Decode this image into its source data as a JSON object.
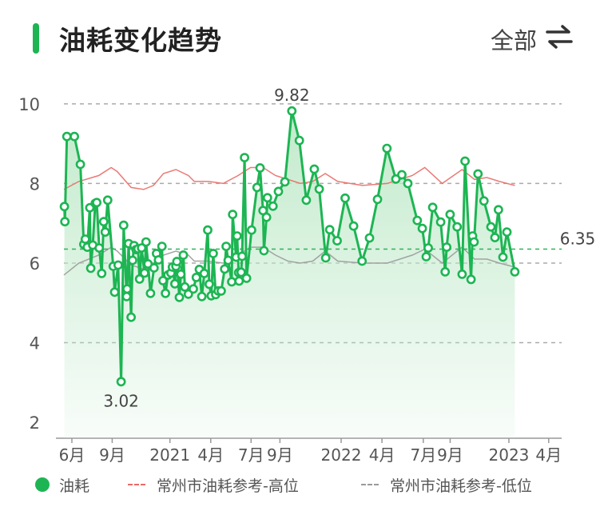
{
  "header": {
    "title": "油耗变化趋势",
    "filter_label": "全部",
    "filter_icon": "swap-arrows-icon"
  },
  "colors": {
    "accent": "#1db553",
    "fill": "#bfe9c9",
    "ref_high": "#e86b66",
    "ref_low": "#9a9a9a",
    "grid": "#aaaaaa",
    "avg_line": "#2fb25a"
  },
  "legend": {
    "series": "油耗",
    "ref_high": "常州市油耗参考-高位",
    "ref_low": "常州市油耗参考-低位"
  },
  "chart_data": {
    "type": "line",
    "y_ticks": [
      2,
      4,
      6,
      8,
      10
    ],
    "ylim": [
      1.6,
      10.6
    ],
    "x_ticks": [
      {
        "label": "6月",
        "pos": 0.016
      },
      {
        "label": "9月",
        "pos": 0.097
      },
      {
        "label": "2021",
        "pos": 0.213
      },
      {
        "label": "4月",
        "pos": 0.295
      },
      {
        "label": "7月",
        "pos": 0.376
      },
      {
        "label": "9月",
        "pos": 0.434
      },
      {
        "label": "2022",
        "pos": 0.557
      },
      {
        "label": "4月",
        "pos": 0.639
      },
      {
        "label": "7月",
        "pos": 0.722
      },
      {
        "label": "9月",
        "pos": 0.776
      },
      {
        "label": "2023",
        "pos": 0.894
      },
      {
        "label": "4月",
        "pos": 0.974
      }
    ],
    "average": 6.35,
    "annotations": {
      "max": "9.82",
      "min": "3.02",
      "avg": "6.35"
    },
    "series": [
      {
        "name": "油耗",
        "points": [
          [
            0.001,
            7.42
          ],
          [
            0.002,
            7.04
          ],
          [
            0.006,
            9.18
          ],
          [
            0.021,
            9.18
          ],
          [
            0.033,
            8.48
          ],
          [
            0.04,
            6.47
          ],
          [
            0.043,
            6.6
          ],
          [
            0.047,
            6.4
          ],
          [
            0.052,
            7.39
          ],
          [
            0.054,
            5.87
          ],
          [
            0.058,
            6.45
          ],
          [
            0.063,
            7.5
          ],
          [
            0.066,
            7.52
          ],
          [
            0.071,
            6.38
          ],
          [
            0.076,
            5.74
          ],
          [
            0.08,
            7.04
          ],
          [
            0.083,
            6.78
          ],
          [
            0.088,
            7.58
          ],
          [
            0.099,
            5.92
          ],
          [
            0.102,
            5.27
          ],
          [
            0.109,
            5.95
          ],
          [
            0.115,
            3.02
          ],
          [
            0.12,
            6.95
          ],
          [
            0.126,
            5.16
          ],
          [
            0.127,
            5.35
          ],
          [
            0.13,
            6.49
          ],
          [
            0.135,
            4.64
          ],
          [
            0.138,
            6.07
          ],
          [
            0.141,
            6.44
          ],
          [
            0.145,
            6.34
          ],
          [
            0.149,
            6.36
          ],
          [
            0.152,
            5.6
          ],
          [
            0.156,
            6.38
          ],
          [
            0.162,
            5.75
          ],
          [
            0.165,
            6.53
          ],
          [
            0.169,
            5.98
          ],
          [
            0.174,
            5.24
          ],
          [
            0.181,
            5.88
          ],
          [
            0.186,
            6.24
          ],
          [
            0.19,
            6.08
          ],
          [
            0.197,
            6.42
          ],
          [
            0.199,
            5.56
          ],
          [
            0.204,
            5.24
          ],
          [
            0.209,
            5.7
          ],
          [
            0.215,
            5.75
          ],
          [
            0.218,
            5.9
          ],
          [
            0.223,
            5.48
          ],
          [
            0.225,
            5.92
          ],
          [
            0.227,
            6.04
          ],
          [
            0.232,
            5.14
          ],
          [
            0.235,
            5.72
          ],
          [
            0.24,
            6.2
          ],
          [
            0.243,
            5.4
          ],
          [
            0.25,
            5.22
          ],
          [
            0.26,
            5.35
          ],
          [
            0.266,
            5.64
          ],
          [
            0.272,
            5.84
          ],
          [
            0.277,
            5.16
          ],
          [
            0.282,
            5.74
          ],
          [
            0.289,
            6.83
          ],
          [
            0.292,
            5.47
          ],
          [
            0.296,
            5.18
          ],
          [
            0.3,
            6.24
          ],
          [
            0.305,
            5.21
          ],
          [
            0.31,
            5.3
          ],
          [
            0.316,
            5.3
          ],
          [
            0.323,
            5.85
          ],
          [
            0.326,
            6.42
          ],
          [
            0.33,
            6.07
          ],
          [
            0.337,
            5.53
          ],
          [
            0.339,
            7.22
          ],
          [
            0.346,
            6.15
          ],
          [
            0.348,
            6.68
          ],
          [
            0.351,
            5.76
          ],
          [
            0.352,
            5.55
          ],
          [
            0.356,
            5.77
          ],
          [
            0.358,
            6.17
          ],
          [
            0.363,
            8.65
          ],
          [
            0.367,
            5.62
          ],
          [
            0.377,
            6.83
          ],
          [
            0.388,
            7.9
          ],
          [
            0.394,
            8.39
          ],
          [
            0.4,
            7.32
          ],
          [
            0.402,
            6.31
          ],
          [
            0.407,
            7.15
          ],
          [
            0.409,
            7.64
          ],
          [
            0.42,
            7.43
          ],
          [
            0.431,
            7.8
          ],
          [
            0.444,
            8.04
          ],
          [
            0.458,
            9.82
          ],
          [
            0.473,
            9.08
          ],
          [
            0.487,
            7.58
          ],
          [
            0.503,
            8.36
          ],
          [
            0.513,
            7.86
          ],
          [
            0.526,
            6.13
          ],
          [
            0.534,
            6.84
          ],
          [
            0.549,
            6.56
          ],
          [
            0.565,
            7.63
          ],
          [
            0.582,
            6.93
          ],
          [
            0.599,
            6.05
          ],
          [
            0.614,
            6.63
          ],
          [
            0.63,
            7.6
          ],
          [
            0.649,
            8.88
          ],
          [
            0.667,
            8.11
          ],
          [
            0.679,
            8.22
          ],
          [
            0.691,
            8.0
          ],
          [
            0.71,
            7.07
          ],
          [
            0.72,
            6.87
          ],
          [
            0.728,
            6.16
          ],
          [
            0.732,
            6.38
          ],
          [
            0.741,
            7.4
          ],
          [
            0.757,
            7.03
          ],
          [
            0.766,
            5.78
          ],
          [
            0.769,
            6.4
          ],
          [
            0.776,
            7.22
          ],
          [
            0.79,
            6.91
          ],
          [
            0.8,
            5.72
          ],
          [
            0.806,
            8.56
          ],
          [
            0.818,
            5.59
          ],
          [
            0.821,
            6.68
          ],
          [
            0.824,
            6.53
          ],
          [
            0.832,
            8.24
          ],
          [
            0.844,
            7.56
          ],
          [
            0.858,
            6.91
          ],
          [
            0.866,
            6.64
          ],
          [
            0.873,
            7.34
          ],
          [
            0.882,
            6.15
          ],
          [
            0.89,
            6.78
          ],
          [
            0.906,
            5.78
          ]
        ]
      },
      {
        "name": "常州市油耗参考-高位",
        "points": [
          [
            0.0,
            7.85
          ],
          [
            0.03,
            8.05
          ],
          [
            0.07,
            8.2
          ],
          [
            0.095,
            8.4
          ],
          [
            0.107,
            8.3
          ],
          [
            0.135,
            7.9
          ],
          [
            0.16,
            7.85
          ],
          [
            0.18,
            7.95
          ],
          [
            0.2,
            8.25
          ],
          [
            0.225,
            8.35
          ],
          [
            0.25,
            8.2
          ],
          [
            0.262,
            8.05
          ],
          [
            0.29,
            8.05
          ],
          [
            0.32,
            8.0
          ],
          [
            0.35,
            8.2
          ],
          [
            0.375,
            8.4
          ],
          [
            0.4,
            8.4
          ],
          [
            0.425,
            8.2
          ],
          [
            0.45,
            8.1
          ],
          [
            0.475,
            8.0
          ],
          [
            0.5,
            8.05
          ],
          [
            0.525,
            8.25
          ],
          [
            0.55,
            8.05
          ],
          [
            0.6,
            7.95
          ],
          [
            0.65,
            8.0
          ],
          [
            0.7,
            8.2
          ],
          [
            0.725,
            8.4
          ],
          [
            0.76,
            8.0
          ],
          [
            0.8,
            8.35
          ],
          [
            0.825,
            8.1
          ],
          [
            0.85,
            8.15
          ],
          [
            0.875,
            8.05
          ],
          [
            0.906,
            7.95
          ]
        ]
      },
      {
        "name": "常州市油耗参考-低位",
        "points": [
          [
            0.0,
            5.7
          ],
          [
            0.03,
            6.0
          ],
          [
            0.07,
            6.2
          ],
          [
            0.095,
            6.4
          ],
          [
            0.107,
            6.3
          ],
          [
            0.135,
            5.95
          ],
          [
            0.16,
            5.85
          ],
          [
            0.18,
            5.9
          ],
          [
            0.2,
            6.2
          ],
          [
            0.225,
            6.3
          ],
          [
            0.25,
            6.2
          ],
          [
            0.262,
            6.05
          ],
          [
            0.29,
            6.05
          ],
          [
            0.32,
            6.0
          ],
          [
            0.35,
            6.2
          ],
          [
            0.375,
            6.4
          ],
          [
            0.4,
            6.4
          ],
          [
            0.425,
            6.2
          ],
          [
            0.45,
            6.05
          ],
          [
            0.475,
            6.0
          ],
          [
            0.5,
            6.05
          ],
          [
            0.525,
            6.3
          ],
          [
            0.55,
            6.05
          ],
          [
            0.6,
            6.0
          ],
          [
            0.65,
            6.0
          ],
          [
            0.7,
            6.2
          ],
          [
            0.725,
            6.35
          ],
          [
            0.76,
            6.0
          ],
          [
            0.8,
            6.4
          ],
          [
            0.825,
            6.1
          ],
          [
            0.85,
            6.1
          ],
          [
            0.875,
            6.0
          ],
          [
            0.906,
            5.9
          ]
        ]
      }
    ]
  }
}
